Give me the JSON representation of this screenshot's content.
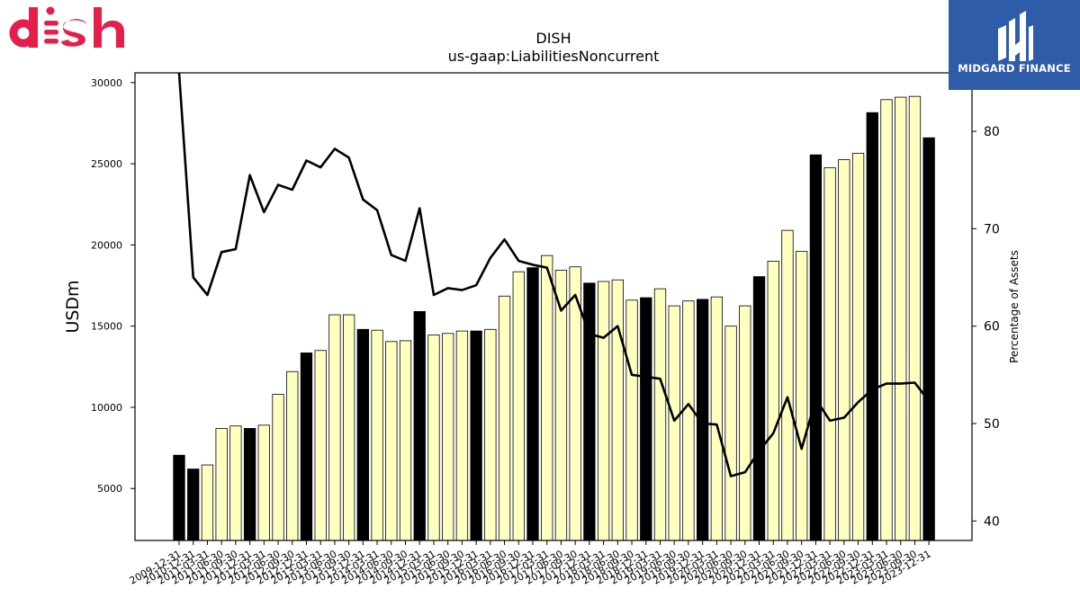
{
  "brand": {
    "company_logo_text": "dish",
    "company_logo_color": "#e41f4c",
    "publisher_name": "MIDGARD FINANCE",
    "publisher_color": "#2f5ca8"
  },
  "chart_data": {
    "type": "bar",
    "title": "DISH",
    "subtitle": "us-gaap:LiabilitiesNoncurrent",
    "ylabel": "USDm",
    "y2label": "Percentage of Assets",
    "ylim": [
      1800,
      30600
    ],
    "y2lim": [
      38,
      86
    ],
    "yticks": [
      5000,
      10000,
      15000,
      20000,
      25000,
      30000
    ],
    "y2ticks": [
      40,
      50,
      60,
      70,
      80
    ],
    "categories": [
      "2009-12-31",
      "2010-12-31",
      "2011-03-31",
      "2011-06-30",
      "2011-09-30",
      "2011-12-31",
      "2012-03-31",
      "2012-06-30",
      "2012-09-30",
      "2012-12-31",
      "2013-03-31",
      "2013-06-30",
      "2013-09-30",
      "2013-12-31",
      "2014-03-31",
      "2014-06-30",
      "2014-09-30",
      "2014-12-31",
      "2015-03-31",
      "2015-06-30",
      "2015-09-30",
      "2015-12-31",
      "2016-03-31",
      "2016-06-30",
      "2016-09-30",
      "2016-12-31",
      "2017-03-31",
      "2017-06-30",
      "2017-09-30",
      "2017-12-31",
      "2018-03-31",
      "2018-06-30",
      "2018-09-30",
      "2018-12-31",
      "2019-03-31",
      "2019-06-30",
      "2019-09-30",
      "2019-12-31",
      "2020-03-31",
      "2020-06-30",
      "2020-09-30",
      "2020-12-31",
      "2021-03-31",
      "2021-06-30",
      "2021-09-30",
      "2021-12-31",
      "2022-03-31",
      "2022-06-30",
      "2022-09-30",
      "2022-12-31",
      "2023-03-31",
      "2023-06-30",
      "2023-09-30",
      "2023-12-31"
    ],
    "series": [
      {
        "kind": "bar",
        "values": [
          7050,
          6200,
          6450,
          8700,
          8850,
          8700,
          8900,
          10800,
          12200,
          13350,
          13500,
          15700,
          15700,
          14800,
          14750,
          14050,
          14100,
          15900,
          14450,
          14550,
          14700,
          14700,
          14800,
          16850,
          18350,
          18600,
          19350,
          18450,
          18650,
          17650,
          17750,
          17850,
          16600,
          16750,
          17300,
          16250,
          16550,
          16650,
          16800,
          15000,
          16250,
          18050,
          19000,
          20900,
          19600,
          25550,
          24750,
          25250,
          25650,
          28150,
          28950,
          29100,
          29150,
          26600
        ],
        "annual_color": "#000000",
        "quarterly_color": "#ffffc0"
      },
      {
        "kind": "line",
        "axis": "secondary",
        "color": "#000000",
        "values": [
          86.0,
          65.0,
          63.2,
          67.6,
          67.9,
          75.5,
          71.7,
          74.5,
          74.0,
          77.0,
          76.3,
          78.2,
          77.3,
          73.0,
          71.9,
          67.3,
          66.7,
          72.1,
          63.2,
          63.9,
          63.7,
          64.2,
          67.0,
          68.9,
          66.7,
          66.3,
          66.0,
          61.6,
          63.2,
          59.2,
          58.8,
          60.0,
          55.0,
          54.8,
          54.6,
          50.3,
          52.0,
          50.0,
          49.9,
          44.6,
          45.0,
          47.2,
          49.0,
          52.7,
          47.4,
          52.5,
          50.3,
          50.6,
          52.2,
          53.5,
          54.1,
          54.1,
          54.2,
          52.3
        ]
      }
    ],
    "grid": false,
    "legend": "none"
  }
}
